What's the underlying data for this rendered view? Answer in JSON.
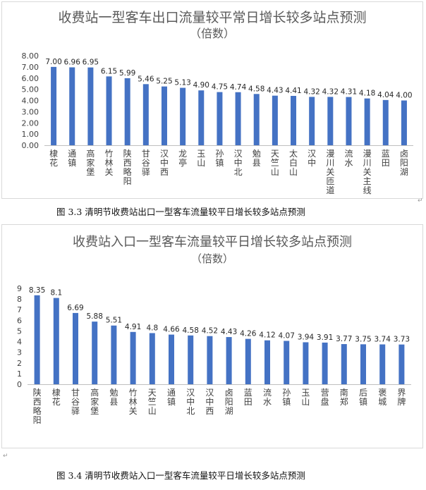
{
  "chart_data": [
    {
      "type": "bar",
      "title": "收费站一型客车出口流量较平常日增长较多站点预测",
      "subtitle": "（倍数）",
      "categories": [
        "棣花",
        "通镇",
        "高家堡",
        "竹林关",
        "陕西略阳",
        "甘谷驿",
        "汉中西",
        "龙亭",
        "玉山",
        "孙镇",
        "汉中北",
        "勉县",
        "天竺山",
        "太白山",
        "汉中",
        "漫川关匝道",
        "流水",
        "漫川关主线",
        "蓝田",
        "卤阳湖"
      ],
      "values": [
        7.0,
        6.96,
        6.95,
        6.15,
        5.99,
        5.46,
        5.25,
        5.13,
        4.9,
        4.75,
        4.74,
        4.58,
        4.43,
        4.41,
        4.32,
        4.32,
        4.31,
        4.18,
        4.04,
        4.0
      ],
      "value_labels": [
        "7.00",
        "6.96",
        "6.95",
        "6.15",
        "5.99",
        "5.46",
        "5.25",
        "5.13",
        "4.90",
        "4.75",
        "4.74",
        "4.58",
        "4.43",
        "4.41",
        "4.32",
        "4.32",
        "4.31",
        "4.18",
        "4.04",
        "4.00"
      ],
      "ylim": [
        0,
        8
      ],
      "yticks": [
        "0.00",
        "1.00",
        "2.00",
        "3.00",
        "4.00",
        "5.00",
        "6.00",
        "7.00",
        "8.00"
      ],
      "grid": false,
      "bar_color": "#4472c4",
      "xlabel": "",
      "ylabel": ""
    },
    {
      "type": "bar",
      "title": "收费站入口一型客车流量较平日增长较多站点预测",
      "subtitle": "（倍数）",
      "categories": [
        "陕西略阳",
        "棣花",
        "甘谷驿",
        "高家堡",
        "勉县",
        "竹林关",
        "天竺山",
        "通镇",
        "汉中北",
        "汉中西",
        "卤阳湖",
        "蓝田",
        "流水",
        "孙镇",
        "玉山",
        "营盘",
        "南郑",
        "后镇",
        "褒城",
        "界牌"
      ],
      "values": [
        8.35,
        8.1,
        6.69,
        5.88,
        5.51,
        4.91,
        4.8,
        4.66,
        4.58,
        4.52,
        4.43,
        4.26,
        4.12,
        4.07,
        3.94,
        3.91,
        3.77,
        3.75,
        3.74,
        3.73
      ],
      "value_labels": [
        "8.35",
        "8.1",
        "6.69",
        "5.88",
        "5.51",
        "4.91",
        "4.8",
        "4.66",
        "4.58",
        "4.52",
        "4.43",
        "4.26",
        "4.12",
        "4.07",
        "3.94",
        "3.91",
        "3.77",
        "3.75",
        "3.74",
        "3.73"
      ],
      "ylim": [
        0,
        9
      ],
      "yticks": [
        "0",
        "1",
        "2",
        "3",
        "4",
        "5",
        "6",
        "7",
        "8",
        "9"
      ],
      "grid": false,
      "bar_color": "#4472c4",
      "xlabel": "",
      "ylabel": ""
    }
  ],
  "captions": {
    "fig1": "图 3.3  清明节收费站出口一型客车流量较平日增长较多站点预测",
    "fig2": "图 3.4  清明节收费站入口一型客车流量较平日增长较多站点预测"
  },
  "marks": {
    "paragraph1": "↵",
    "paragraph2": "↵"
  }
}
